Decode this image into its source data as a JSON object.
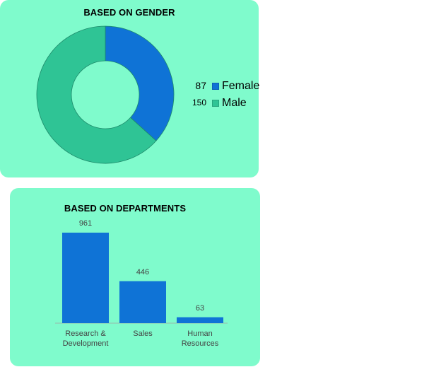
{
  "colors": {
    "panel_bg": "#7ffbcc",
    "female": "#0f73d6",
    "male": "#2fc495",
    "bar": "#0f73d6"
  },
  "chart_data": [
    {
      "type": "donut",
      "title": "BASED ON GENDER",
      "categories": [
        "Female",
        "Male"
      ],
      "values": [
        87,
        150
      ],
      "value_labels": [
        "87",
        "150"
      ],
      "legend": {
        "placement": "right",
        "entries": [
          "Female",
          "Male"
        ]
      }
    },
    {
      "type": "bar",
      "title": "BASED ON DEPARTMENTS",
      "categories": [
        "Research & Development",
        "Sales",
        "Human Resources"
      ],
      "category_lines": [
        [
          "Research &",
          "Development"
        ],
        [
          "Sales"
        ],
        [
          "Human",
          "Resources"
        ]
      ],
      "values": [
        961,
        446,
        63
      ],
      "value_labels": [
        "961",
        "446",
        "63"
      ],
      "xlabel": "",
      "ylabel": "",
      "ylim": [
        0,
        1000
      ],
      "grid": false
    }
  ]
}
